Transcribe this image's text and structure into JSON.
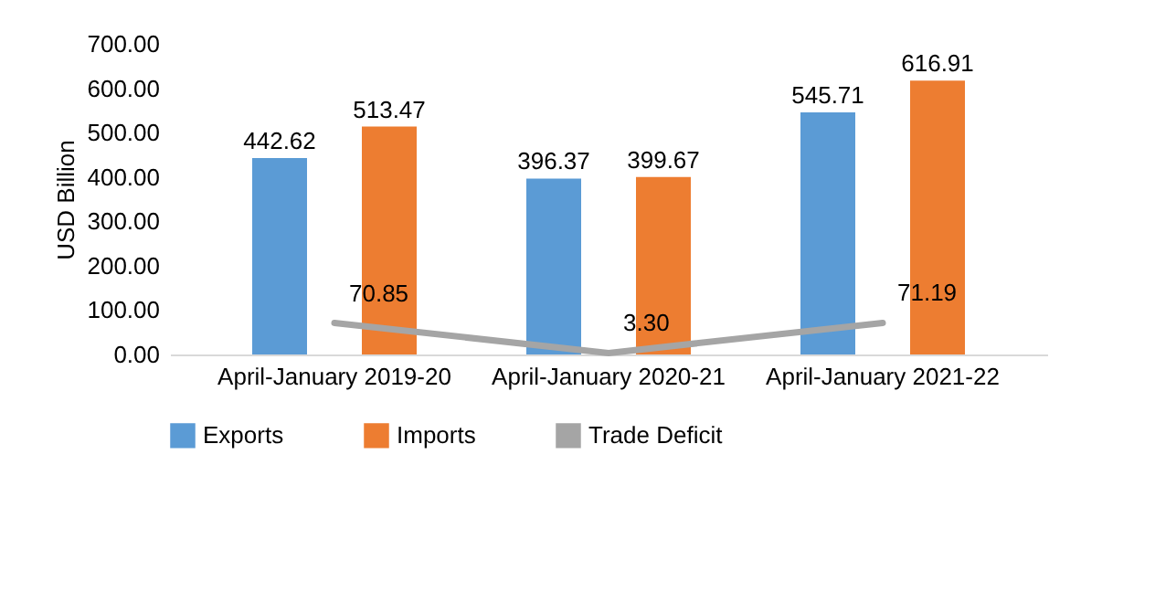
{
  "chart_data": {
    "type": "bar",
    "ylabel": "USD Billion",
    "categories": [
      "April-January 2019-20",
      "April-January 2020-21",
      "April-January 2021-22"
    ],
    "series": [
      {
        "name": "Exports",
        "color": "#5b9bd5",
        "values": [
          442.62,
          396.37,
          545.71
        ],
        "value_labels": [
          "442.62",
          "396.37",
          "545.71"
        ]
      },
      {
        "name": "Imports",
        "color": "#ed7d31",
        "values": [
          513.47,
          399.67,
          616.91
        ],
        "value_labels": [
          "513.47",
          "399.67",
          "616.91"
        ]
      },
      {
        "name": "Trade Deficit",
        "type": "line",
        "color": "#a5a5a5",
        "values": [
          70.85,
          3.3,
          71.19
        ],
        "value_labels": [
          "70.85",
          "3.30",
          "71.19"
        ]
      }
    ],
    "ylim": [
      0,
      700
    ],
    "yticks": [
      {
        "value": 0,
        "label": "0.00"
      },
      {
        "value": 100,
        "label": "100.00"
      },
      {
        "value": 200,
        "label": "200.00"
      },
      {
        "value": 300,
        "label": "300.00"
      },
      {
        "value": 400,
        "label": "400.00"
      },
      {
        "value": 500,
        "label": "500.00"
      },
      {
        "value": 600,
        "label": "600.00"
      },
      {
        "value": 700,
        "label": "700.00"
      }
    ],
    "grid": false,
    "legend": "bottom"
  }
}
